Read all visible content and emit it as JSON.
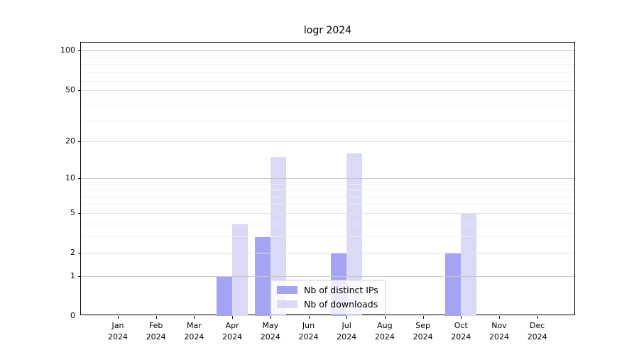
{
  "figure": {
    "title": "logr 2024"
  },
  "colors": {
    "ips_bar": "#a4a4f2",
    "downloads_bar": "#dadaf7",
    "grid_decade": "#c6c6c6",
    "grid_major": "#e1e1e1",
    "grid_minor": "#efefef",
    "axis_line": "#000000",
    "legend_border": "#cccccc"
  },
  "legend": {
    "items": [
      {
        "label": "Nb of distinct IPs",
        "color_key": "ips_bar"
      },
      {
        "label": "Nb of downloads",
        "color_key": "downloads_bar"
      }
    ]
  },
  "chart_data": {
    "type": "bar",
    "title": "logr 2024",
    "scale": "log1p",
    "categories": [
      "Jan",
      "Feb",
      "Mar",
      "Apr",
      "May",
      "Jun",
      "Jul",
      "Aug",
      "Sep",
      "Oct",
      "Nov",
      "Dec"
    ],
    "year_label": "2024",
    "series": [
      {
        "name": "Nb of distinct IPs",
        "color_key": "ips_bar",
        "values": [
          0,
          0,
          0,
          1,
          3,
          0,
          2,
          0,
          0,
          2,
          0,
          0
        ]
      },
      {
        "name": "Nb of downloads",
        "color_key": "downloads_bar",
        "values": [
          0,
          0,
          0,
          4,
          15,
          0,
          16,
          0,
          0,
          5,
          0,
          0
        ]
      }
    ],
    "yticks": [
      0,
      1,
      2,
      5,
      10,
      20,
      50,
      100
    ],
    "ylim": [
      0,
      115
    ],
    "gridlines": {
      "decade": [
        1,
        10,
        100
      ],
      "major": [
        2,
        5,
        20,
        50
      ],
      "minor": [
        3,
        4,
        6,
        7,
        8,
        9,
        29,
        39,
        59,
        69,
        79,
        89
      ]
    },
    "xlabel": "",
    "ylabel": "",
    "legend_position": "inside lower center",
    "grid": true
  }
}
